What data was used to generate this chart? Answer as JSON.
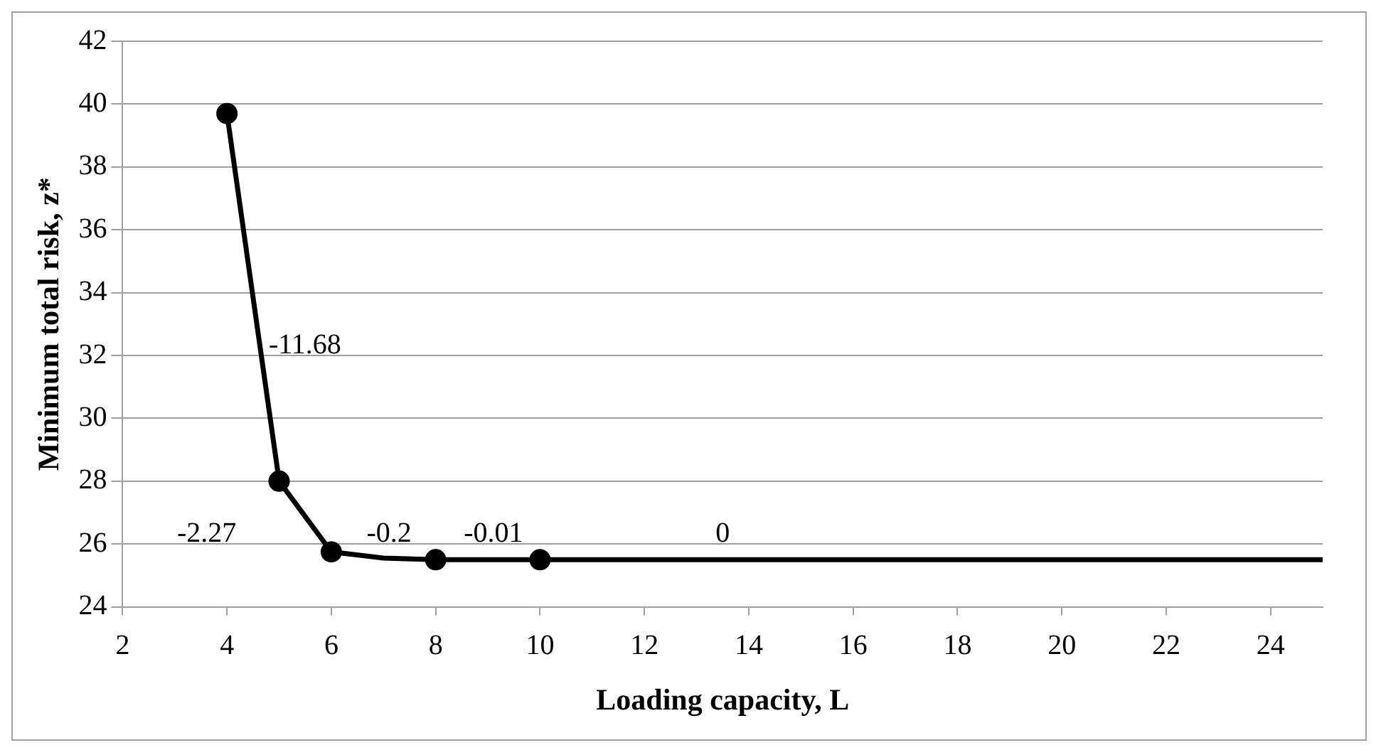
{
  "chart_data": {
    "type": "line",
    "xlabel": "Loading capacity, L",
    "ylabel": "Minimum total risk, z*",
    "series": [
      {
        "type": "line",
        "marker": "none",
        "color": "#000000",
        "x": [
          4,
          5,
          6,
          7,
          8,
          10,
          25
        ],
        "values": [
          39.7,
          28.0,
          25.75,
          25.55,
          25.5,
          25.5,
          25.5
        ]
      },
      {
        "type": "scatter",
        "marker": "circle",
        "color": "#000000",
        "x": [
          4,
          5,
          6,
          8,
          10
        ],
        "values": [
          39.7,
          28.0,
          25.75,
          25.5,
          25.5
        ]
      }
    ],
    "xlim": [
      2,
      25
    ],
    "xticks": [
      2,
      4,
      6,
      8,
      10,
      12,
      14,
      16,
      18,
      20,
      22,
      24
    ],
    "ylim": [
      24,
      42
    ],
    "yticks": [
      24,
      26,
      28,
      30,
      32,
      34,
      36,
      38,
      40,
      42
    ],
    "grid": "y",
    "legend": false,
    "annotations": [
      "-11.68",
      "-2.27",
      "-0.2",
      "-0.01",
      "0"
    ]
  }
}
